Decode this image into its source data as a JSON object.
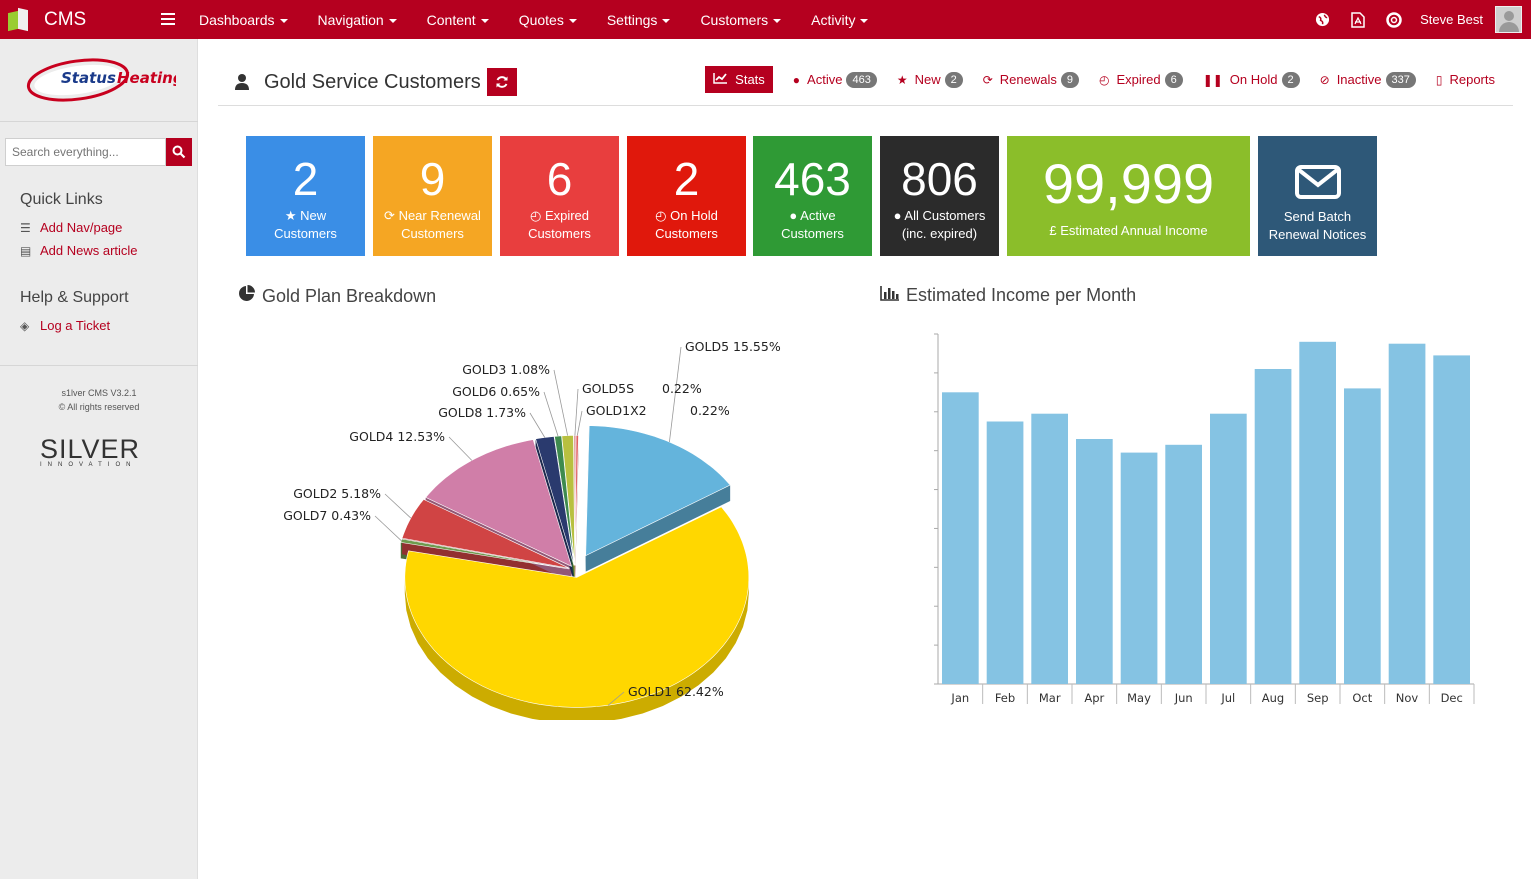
{
  "app": {
    "title": "CMS",
    "brand_accent": "#b5001f"
  },
  "topnav": {
    "items": [
      "Dashboards",
      "Navigation",
      "Content",
      "Quotes",
      "Settings",
      "Customers",
      "Activity"
    ],
    "user_name": "Steve Best"
  },
  "sidebar": {
    "logo_text_1": "Status",
    "logo_text_2": "Heating",
    "search_placeholder": "Search everything...",
    "quick_links_title": "Quick Links",
    "quick_links": [
      "Add Nav/page",
      "Add News article"
    ],
    "help_title": "Help & Support",
    "help_links": [
      "Log a Ticket"
    ],
    "version": "s1lver CMS V3.2.1",
    "rights": "© All rights reserved",
    "vendor_logo": "SILVER",
    "vendor_tag": "INNOVATION"
  },
  "header": {
    "title": "Gold Service Customers",
    "tabs": [
      {
        "label": "Stats",
        "icon": "line-chart-icon"
      },
      {
        "label": "Active",
        "badge": "463",
        "icon": "user-icon"
      },
      {
        "label": "New",
        "badge": "2",
        "icon": "star-icon"
      },
      {
        "label": "Renewals",
        "badge": "9",
        "icon": "refresh-icon"
      },
      {
        "label": "Expired",
        "badge": "6",
        "icon": "clock-icon"
      },
      {
        "label": "On Hold",
        "badge": "2",
        "icon": "pause-icon"
      },
      {
        "label": "Inactive",
        "badge": "337",
        "icon": "ban-icon"
      },
      {
        "label": "Reports",
        "icon": "file-icon"
      }
    ]
  },
  "tiles": [
    {
      "value": "2",
      "line1": "New",
      "line2": "Customers",
      "icon": "star-icon",
      "color": "#3a8ee6"
    },
    {
      "value": "9",
      "line1": "Near Renewal",
      "line2": "Customers",
      "icon": "refresh-icon",
      "color": "#f5a623"
    },
    {
      "value": "6",
      "line1": "Expired",
      "line2": "Customers",
      "icon": "clock-icon",
      "color": "#e83e3e"
    },
    {
      "value": "2",
      "line1": "On Hold",
      "line2": "Customers",
      "icon": "clock-icon",
      "color": "#e0180c"
    },
    {
      "value": "463",
      "line1": "Active",
      "line2": "Customers",
      "icon": "user-icon",
      "color": "#2f9a35"
    },
    {
      "value": "806",
      "line1": "All Customers",
      "line2": "(inc. expired)",
      "icon": "users-icon",
      "color": "#2b2b2b"
    },
    {
      "value": "99,999",
      "line1": "£ Estimated Annual Income",
      "line2": "",
      "icon": "pound-icon",
      "color": "#8bbe2a"
    },
    {
      "value": "",
      "line1": "Send Batch",
      "line2": "Renewal Notices",
      "icon": "envelope-icon",
      "color": "#2e5878"
    }
  ],
  "pie_title": "Gold Plan Breakdown",
  "bar_title": "Estimated Income per Month",
  "chart_data": [
    {
      "type": "pie",
      "title": "Gold Plan Breakdown",
      "slices": [
        {
          "name": "GOLD5",
          "value": 15.55,
          "label": "GOLD5  15.55%",
          "color": "#64b4dc"
        },
        {
          "name": "GOLD1",
          "value": 62.42,
          "label": "GOLD1  62.42%",
          "color": "#ffd700"
        },
        {
          "name": "GOLD7",
          "value": 0.43,
          "label": "GOLD7  0.43%",
          "color": "#6e9a4e"
        },
        {
          "name": "GOLD2",
          "value": 5.18,
          "label": "GOLD2  5.18%",
          "color": "#d04444"
        },
        {
          "name": "GOLD4",
          "value": 12.53,
          "label": "GOLD4  12.53%",
          "color": "#d07ea8"
        },
        {
          "name": "GOLD8",
          "value": 1.73,
          "label": "GOLD8  1.73%",
          "color": "#2a3a6e"
        },
        {
          "name": "GOLD6",
          "value": 0.65,
          "label": "GOLD6  0.65%",
          "color": "#3e8a4e"
        },
        {
          "name": "GOLD3",
          "value": 1.08,
          "label": "GOLD3  1.08%",
          "color": "#b8c040"
        },
        {
          "name": "GOLD5S",
          "value": 0.22,
          "label": "GOLD5S",
          "pct": "0.22%",
          "color": "#e0a0a0"
        },
        {
          "name": "GOLD1X2",
          "value": 0.22,
          "label": "GOLD1X2",
          "pct": "0.22%",
          "color": "#e06060"
        }
      ]
    },
    {
      "type": "bar",
      "title": "Estimated Income per Month",
      "categories": [
        "Jan",
        "Feb",
        "Mar",
        "Apr",
        "May",
        "Jun",
        "Jul",
        "Aug",
        "Sep",
        "Oct",
        "Nov",
        "Dec"
      ],
      "values": [
        7.5,
        6.75,
        6.95,
        6.3,
        5.95,
        6.15,
        6.95,
        8.1,
        8.8,
        7.6,
        8.75,
        8.45
      ],
      "ylim": [
        0,
        9
      ],
      "grid": false,
      "color": "#85c3e3"
    }
  ]
}
